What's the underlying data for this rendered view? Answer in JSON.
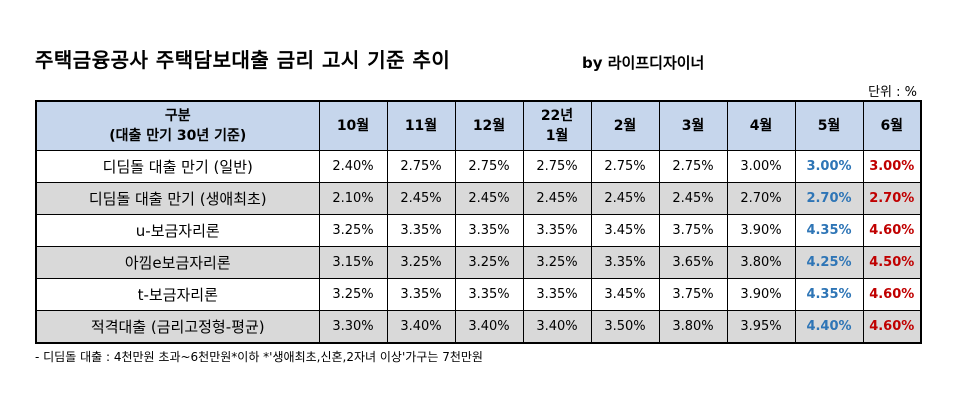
{
  "title": "주택금융공사 주택담보대출 금리 고시 기준 추이",
  "byline": "by 라이프디자이너",
  "unit": "단위 : %",
  "table": {
    "header_label_line1": "구분",
    "header_label_line2": "(대출 만기 30년 기준)",
    "months": [
      "10월",
      "11월",
      "12월",
      "22년",
      "2월",
      "3월",
      "4월",
      "5월",
      "6월"
    ],
    "month4_line2": "1월",
    "rows": [
      {
        "label": "디딤돌 대출 만기 (일반)",
        "values": [
          "2.40%",
          "2.75%",
          "2.75%",
          "2.75%",
          "2.75%",
          "2.75%",
          "3.00%",
          "3.00%",
          "3.00%"
        ]
      },
      {
        "label": "디딤돌 대출 만기 (생애최초)",
        "values": [
          "2.10%",
          "2.45%",
          "2.45%",
          "2.45%",
          "2.45%",
          "2.45%",
          "2.70%",
          "2.70%",
          "2.70%"
        ]
      },
      {
        "label": "u-보금자리론",
        "values": [
          "3.25%",
          "3.35%",
          "3.35%",
          "3.35%",
          "3.45%",
          "3.75%",
          "3.90%",
          "4.35%",
          "4.60%"
        ]
      },
      {
        "label": "아낌e보금자리론",
        "values": [
          "3.15%",
          "3.25%",
          "3.25%",
          "3.25%",
          "3.35%",
          "3.65%",
          "3.80%",
          "4.25%",
          "4.50%"
        ]
      },
      {
        "label": "t-보금자리론",
        "values": [
          "3.25%",
          "3.35%",
          "3.35%",
          "3.35%",
          "3.45%",
          "3.75%",
          "3.90%",
          "4.35%",
          "4.60%"
        ]
      },
      {
        "label": "적격대출 (금리고정형-평균)",
        "values": [
          "3.30%",
          "3.40%",
          "3.40%",
          "3.40%",
          "3.50%",
          "3.80%",
          "3.95%",
          "4.40%",
          "4.60%"
        ]
      }
    ]
  },
  "note": "- 디딤돌 대출 : 4천만원 초과~6천만원*이하 *'생애최초,신혼,2자녀 이상'가구는 7천만원",
  "colors": {
    "header_bg": "#c6d6ec",
    "shaded_row_bg": "#d9d9d9",
    "may_text": "#2e75b6",
    "june_text": "#c00000"
  }
}
